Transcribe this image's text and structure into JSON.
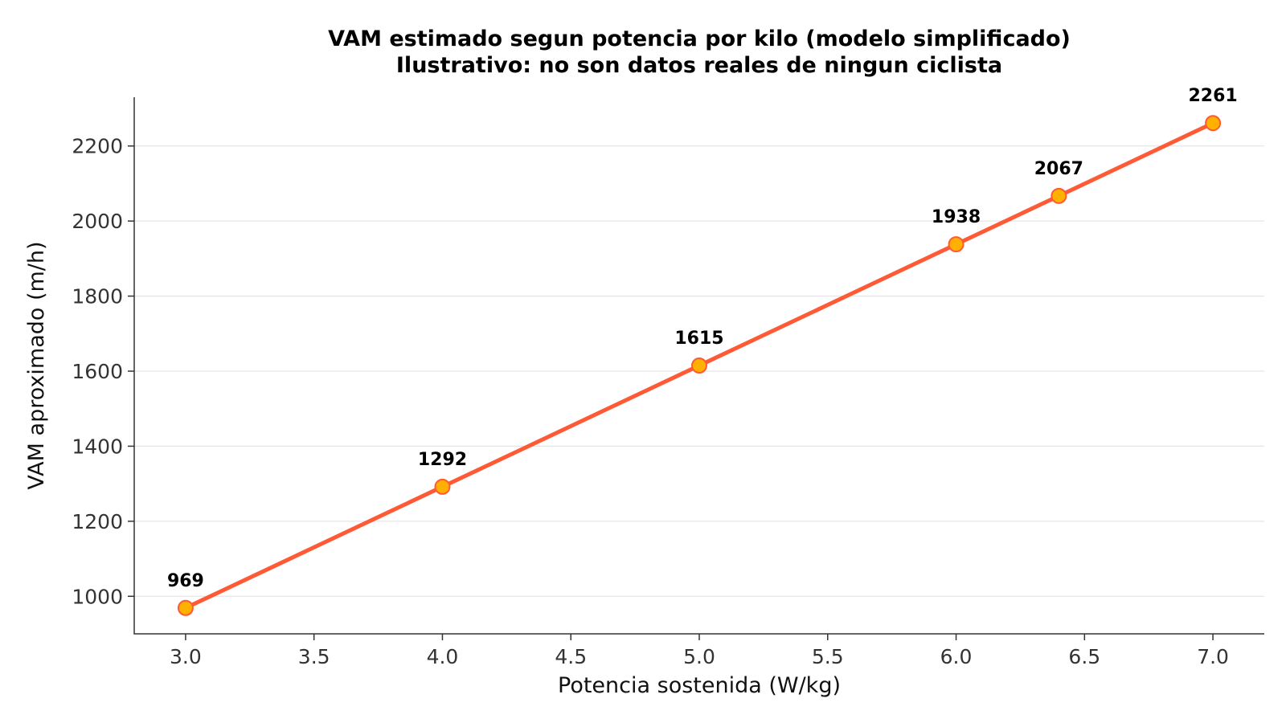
{
  "chart_data": {
    "type": "line",
    "title": "VAM estimado segun potencia por kilo (modelo simplificado)",
    "subtitle": "Ilustrativo: no son datos reales de ningun ciclista",
    "xlabel": "Potencia sostenida (W/kg)",
    "ylabel": "VAM aproximado (m/h)",
    "xlim": [
      2.8,
      7.2
    ],
    "ylim": [
      900,
      2330
    ],
    "x_ticks": [
      "3.0",
      "3.5",
      "4.0",
      "4.5",
      "5.0",
      "5.5",
      "6.0",
      "6.5",
      "7.0"
    ],
    "y_ticks": [
      "1000",
      "1200",
      "1400",
      "1600",
      "1800",
      "2000",
      "2200"
    ],
    "grid": "horizontal",
    "line_color": "#ff5a36",
    "marker_fill": "#ffb000",
    "marker_edge": "#ff5a36",
    "series": [
      {
        "x": [
          3.0,
          4.0,
          5.0,
          6.0,
          6.4,
          7.0
        ],
        "y": [
          969,
          1292,
          1615,
          1938,
          2067,
          2261
        ],
        "labels": [
          "969",
          "1292",
          "1615",
          "1938",
          "2067",
          "2261"
        ]
      }
    ]
  }
}
